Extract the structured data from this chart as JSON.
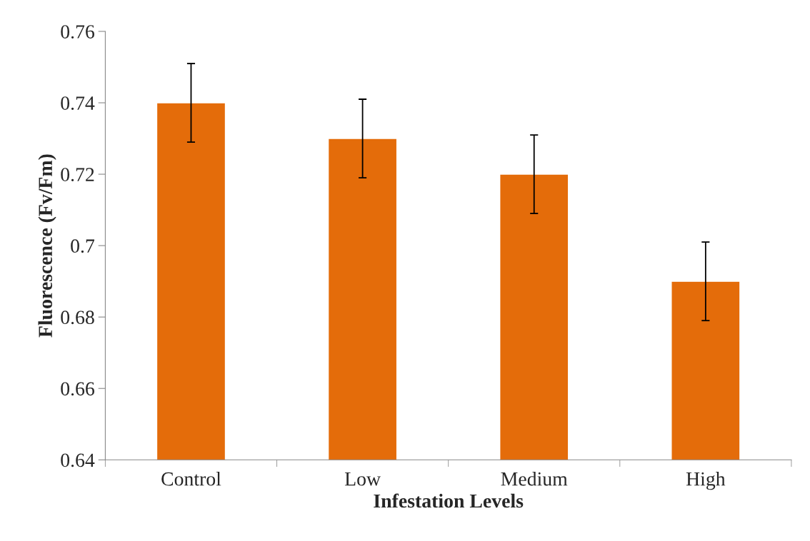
{
  "chart_data": {
    "type": "bar",
    "xlabel": "Infestation Levels",
    "ylabel": "Fluorescence (Fv/Fm)",
    "categories": [
      "Control",
      "Low",
      "Medium",
      "High"
    ],
    "values": [
      0.74,
      0.73,
      0.72,
      0.69
    ],
    "errors": [
      0.011,
      0.011,
      0.011,
      0.011
    ],
    "color": "#e46c0a",
    "ylim": [
      0.64,
      0.76
    ],
    "yticks": [
      0.64,
      0.66,
      0.68,
      0.7,
      0.72,
      0.74,
      0.76
    ],
    "grid": false,
    "legend": false
  }
}
